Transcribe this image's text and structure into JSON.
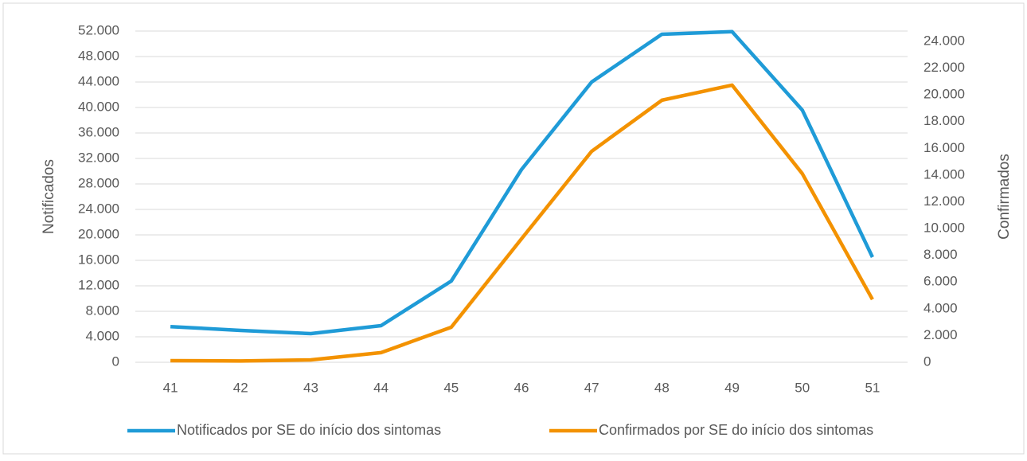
{
  "chart_data": {
    "type": "line",
    "categories": [
      "41",
      "42",
      "43",
      "44",
      "45",
      "46",
      "47",
      "48",
      "49",
      "50",
      "51"
    ],
    "y_label": "Notificados",
    "y2_label": "Confirmados",
    "ylim": [
      0,
      52000
    ],
    "yticks": [
      0,
      {
        "value": 4000,
        "label": "4.000"
      },
      {
        "value": 8000,
        "label": "8.000"
      },
      {
        "value": 12000,
        "label": "12.000"
      },
      {
        "value": 16000,
        "label": "16.000"
      },
      {
        "value": 20000,
        "label": "20.000"
      },
      {
        "value": 24000,
        "label": "24.000"
      },
      {
        "value": 28000,
        "label": "28.000"
      },
      {
        "value": 32000,
        "label": "32.000"
      },
      {
        "value": 36000,
        "label": "36.000"
      },
      {
        "value": 40000,
        "label": "40.000"
      },
      {
        "value": 44000,
        "label": "44.000"
      },
      {
        "value": 48000,
        "label": "48.000"
      },
      {
        "value": 52000,
        "label": "52.000"
      }
    ],
    "y2lim": [
      0,
      24000
    ],
    "y2ticks": [
      0,
      {
        "value": 2000,
        "label": "2.000"
      },
      {
        "value": 4000,
        "label": "4.000"
      },
      {
        "value": 6000,
        "label": "6.000"
      },
      {
        "value": 8000,
        "label": "8.000"
      },
      {
        "value": 10000,
        "label": "10.000"
      },
      {
        "value": 12000,
        "label": "12.000"
      },
      {
        "value": 14000,
        "label": "14.000"
      },
      {
        "value": 16000,
        "label": "16.000"
      },
      {
        "value": 18000,
        "label": "18.000"
      },
      {
        "value": 20000,
        "label": "20.000"
      },
      {
        "value": 22000,
        "label": "22.000"
      },
      {
        "value": 24000,
        "label": "24.000"
      }
    ],
    "grid": true,
    "legend": "bottom",
    "series": [
      {
        "name": "Notificados por SE do início dos sintomas",
        "color": "#1f9bd7",
        "values": [
          5600,
          5000,
          4500,
          5750,
          12750,
          30250,
          44000,
          51500,
          51900,
          39600,
          16500
        ]
      },
      {
        "name": "Confirmados por SE do início dos sintomas",
        "color": "#f39200",
        "axis": "y2",
        "values": [
          120,
          100,
          180,
          720,
          2620,
          9230,
          15780,
          19600,
          20730,
          14110,
          4700
        ]
      }
    ]
  }
}
